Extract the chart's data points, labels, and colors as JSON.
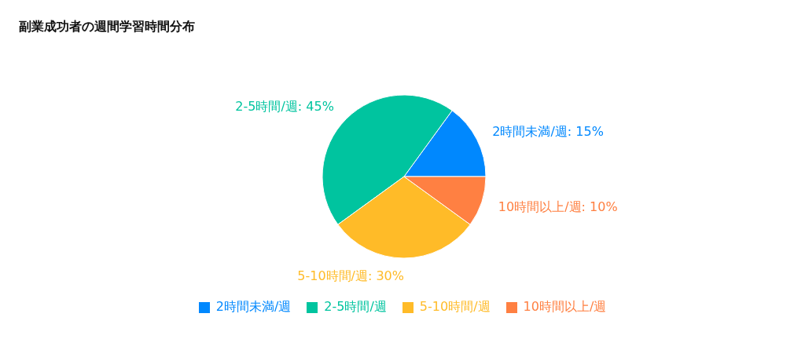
{
  "chart_data": {
    "type": "pie",
    "title": "副業成功者の週間学習時間分布",
    "categories": [
      "2時間未満/週",
      "2-5時間/週",
      "5-10時間/週",
      "10時間以上/週"
    ],
    "values": [
      15,
      45,
      30,
      10
    ],
    "colors": [
      "#0088fe",
      "#00c49f",
      "#ffbb28",
      "#ff8042"
    ],
    "value_labels": [
      "2時間未満/週: 15%",
      "2-5時間/週: 45%",
      "5-10時間/週: 30%",
      "10時間以上/週: 10%"
    ],
    "legend": "bottom"
  }
}
